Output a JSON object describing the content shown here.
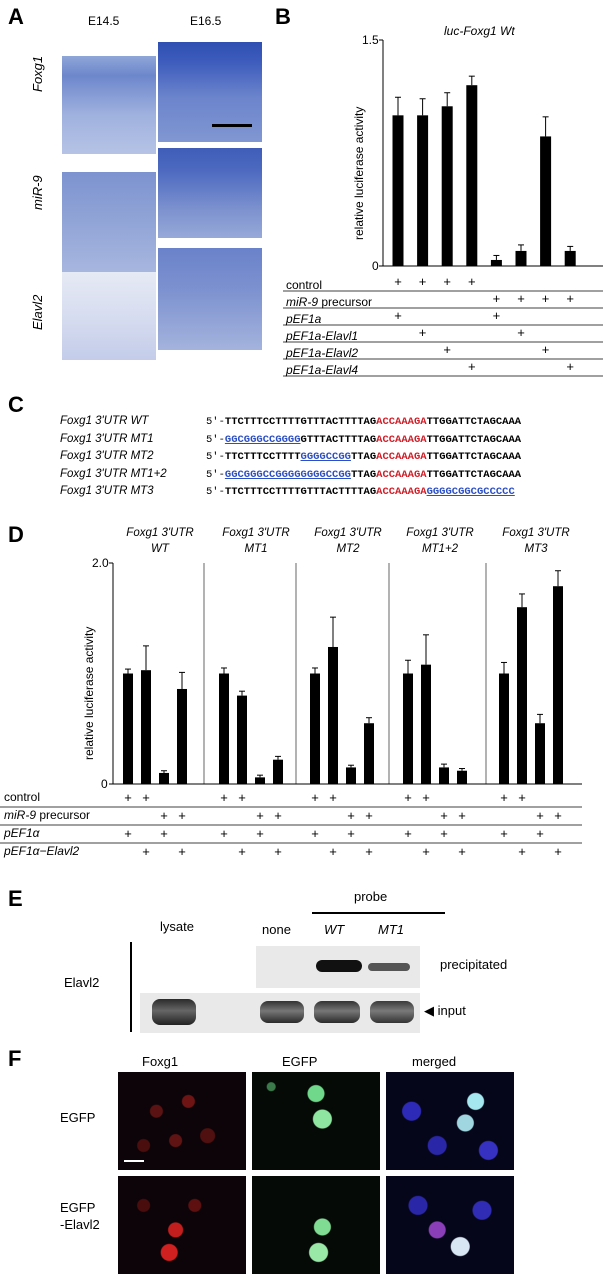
{
  "panels": {
    "a": "A",
    "b": "B",
    "c": "C",
    "d": "D",
    "e": "E",
    "f": "F"
  },
  "panel_a": {
    "stages": [
      "E14.5",
      "E16.5"
    ],
    "rows": [
      "Foxg1",
      "miR-9",
      "Elavl2"
    ]
  },
  "panel_b": {
    "title": "luc-Foxg1 Wt",
    "ylabel": "relative luciferase activity",
    "ytick_top": "1.5",
    "ytick_bottom": "0",
    "row_labels": [
      "control",
      "miR-9 precursor",
      "pEF1a",
      "pEF1a-Elavl1",
      "pEF1a-Elavl2",
      "pEF1a-Elavl4"
    ]
  },
  "panel_c": {
    "rows": [
      {
        "label": "Foxg1 3'UTR WT",
        "prefix": "5'-",
        "a": "TTCTTTCCTTTTGTTTACTTTTAG",
        "seed": "ACCAAAGA",
        "b": "TTGGATTCTAGCAAA",
        "mut_pos": "none",
        "mut": ""
      },
      {
        "label": "Foxg1 3'UTR MT1",
        "prefix": "5'-",
        "a": "GTTTACTTTTAG",
        "seed": "ACCAAAGA",
        "b": "TTGGATTCTAGCAAA",
        "mut_pos": "start",
        "mut": "GGCGGGCCGGGG"
      },
      {
        "label": "Foxg1 3'UTR MT2",
        "prefix": "5'-",
        "a": "TTCTTTCCTTTT",
        "seed": "ACCAAAGA",
        "b": "TTGGATTCTAGCAAA",
        "mut_pos": "mid",
        "mut": "GGGGCCGG",
        "a2": "TTAG"
      },
      {
        "label": "Foxg1 3'UTR MT1+2",
        "prefix": "5'-",
        "a": "TTAG",
        "seed": "ACCAAAGA",
        "b": "TTGGATTCTAGCAAA",
        "mut_pos": "start",
        "mut": "GGCGGGCCGGGGGGGGCCGG"
      },
      {
        "label": "Foxg1 3'UTR MT3",
        "prefix": "5'-",
        "a": "TTCTTTCCTTTTGTTTACTTTTAG",
        "seed": "ACCAAAGA",
        "b": "",
        "mut_pos": "end",
        "mut": "GGGGCGGCGCCCCC"
      }
    ]
  },
  "panel_d": {
    "ylabel": "relative luciferase activity",
    "ytick_top": "2.0",
    "ytick_bottom": "0",
    "groups": [
      "Foxg1 3'UTR WT",
      "Foxg1 3'UTR MT1",
      "Foxg1 3'UTR MT2",
      "Foxg1 3'UTR MT1+2",
      "Foxg1 3'UTR MT3"
    ],
    "group_line1": [
      "Foxg1 3'UTR",
      "Foxg1 3'UTR",
      "Foxg1 3'UTR",
      "Foxg1 3'UTR",
      "Foxg1 3'UTR"
    ],
    "group_line2": [
      "WT",
      "MT1",
      "MT2",
      "MT1+2",
      "MT3"
    ],
    "row_labels": [
      "control",
      "miR-9 precursor",
      "pEF1α",
      "pEF1α−Elavl2"
    ]
  },
  "panel_e": {
    "probe": "probe",
    "lanes": [
      "lysate",
      "none",
      "WT",
      "MT1"
    ],
    "protein": "Elavl2",
    "precipitated": "precipitated",
    "input": "input"
  },
  "panel_f": {
    "columns": [
      "Foxg1",
      "EGFP",
      "merged"
    ],
    "rows": [
      "EGFP",
      "EGFP\n-Elavl2"
    ],
    "row1": "EGFP",
    "row2a": "EGFP",
    "row2b": "-Elavl2"
  },
  "chart_data": [
    {
      "type": "bar",
      "title": "luc-Foxg1 Wt",
      "xlabel": "",
      "ylabel": "relative luciferase activity",
      "ylim": [
        0,
        1.5
      ],
      "categories": [
        "1",
        "2",
        "3",
        "4",
        "5",
        "6",
        "7",
        "8"
      ],
      "values": [
        1.0,
        1.0,
        1.06,
        1.2,
        0.04,
        0.1,
        0.86,
        0.1
      ],
      "errors": [
        0.12,
        0.11,
        0.09,
        0.06,
        0.03,
        0.04,
        0.13,
        0.03
      ],
      "plus_rows": {
        "control": [
          1,
          1,
          1,
          1,
          0,
          0,
          0,
          0
        ],
        "miR-9 precursor": [
          0,
          0,
          0,
          0,
          1,
          1,
          1,
          1
        ],
        "pEF1a": [
          1,
          0,
          0,
          0,
          1,
          0,
          0,
          0
        ],
        "pEF1a-Elavl1": [
          0,
          1,
          0,
          0,
          0,
          1,
          0,
          0
        ],
        "pEF1a-Elavl2": [
          0,
          0,
          1,
          0,
          0,
          0,
          1,
          0
        ],
        "pEF1a-Elavl4": [
          0,
          0,
          0,
          1,
          0,
          0,
          0,
          1
        ]
      }
    },
    {
      "type": "bar",
      "title": "",
      "xlabel": "",
      "ylabel": "relative luciferase activity",
      "ylim": [
        0,
        2.0
      ],
      "groups": [
        "WT",
        "MT1",
        "MT2",
        "MT1+2",
        "MT3"
      ],
      "values": [
        [
          1.0,
          1.03,
          0.1,
          0.86
        ],
        [
          1.0,
          0.8,
          0.06,
          0.22
        ],
        [
          1.0,
          1.24,
          0.15,
          0.55
        ],
        [
          1.0,
          1.08,
          0.15,
          0.12
        ],
        [
          1.0,
          1.6,
          0.55,
          1.79
        ]
      ],
      "errors": [
        [
          0.04,
          0.22,
          0.02,
          0.15
        ],
        [
          0.05,
          0.04,
          0.02,
          0.03
        ],
        [
          0.05,
          0.27,
          0.02,
          0.05
        ],
        [
          0.12,
          0.27,
          0.03,
          0.02
        ],
        [
          0.1,
          0.12,
          0.08,
          0.14
        ]
      ],
      "plus_rows": {
        "control": [
          1,
          1,
          0,
          0
        ],
        "miR-9 precursor": [
          0,
          0,
          1,
          1
        ],
        "pEF1α": [
          1,
          0,
          1,
          0
        ],
        "pEF1α−Elavl2": [
          0,
          1,
          0,
          1
        ]
      }
    }
  ]
}
